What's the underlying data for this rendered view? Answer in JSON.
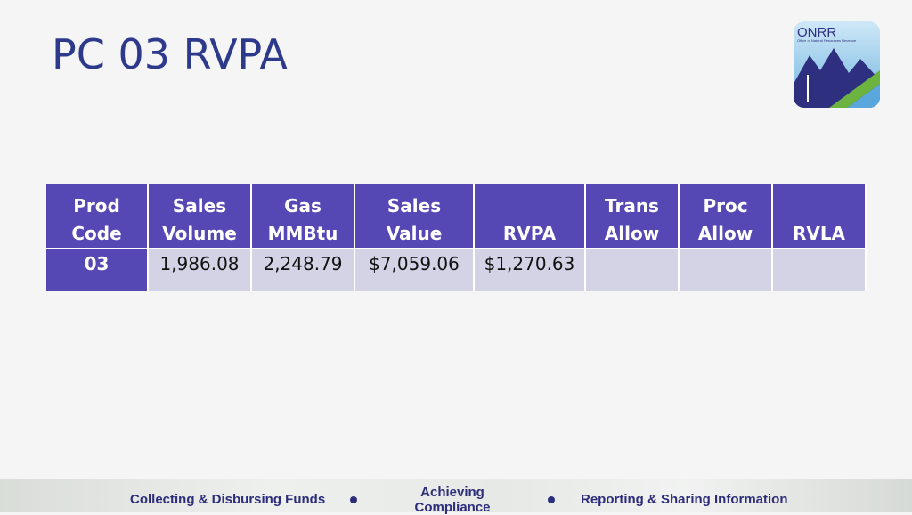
{
  "header": {
    "title": "PC 03 RVPA",
    "logo": {
      "name": "ONRR",
      "subtitle": "Office of Natural Resources Revenue"
    }
  },
  "table": {
    "columns": [
      "Prod\nCode",
      "Sales\nVolume",
      "Gas\nMMBtu",
      "Sales Value",
      "RVPA",
      "Trans\nAllow",
      "Proc\nAllow",
      "RVLA"
    ],
    "rows": [
      [
        "03",
        "1,986.08",
        "2,248.79",
        "$7,059.06",
        "$1,270.63"
      ]
    ]
  },
  "footer": {
    "items": [
      "Collecting & Disbursing Funds",
      "Achieving\nCompliance",
      "Reporting & Sharing Information"
    ]
  }
}
